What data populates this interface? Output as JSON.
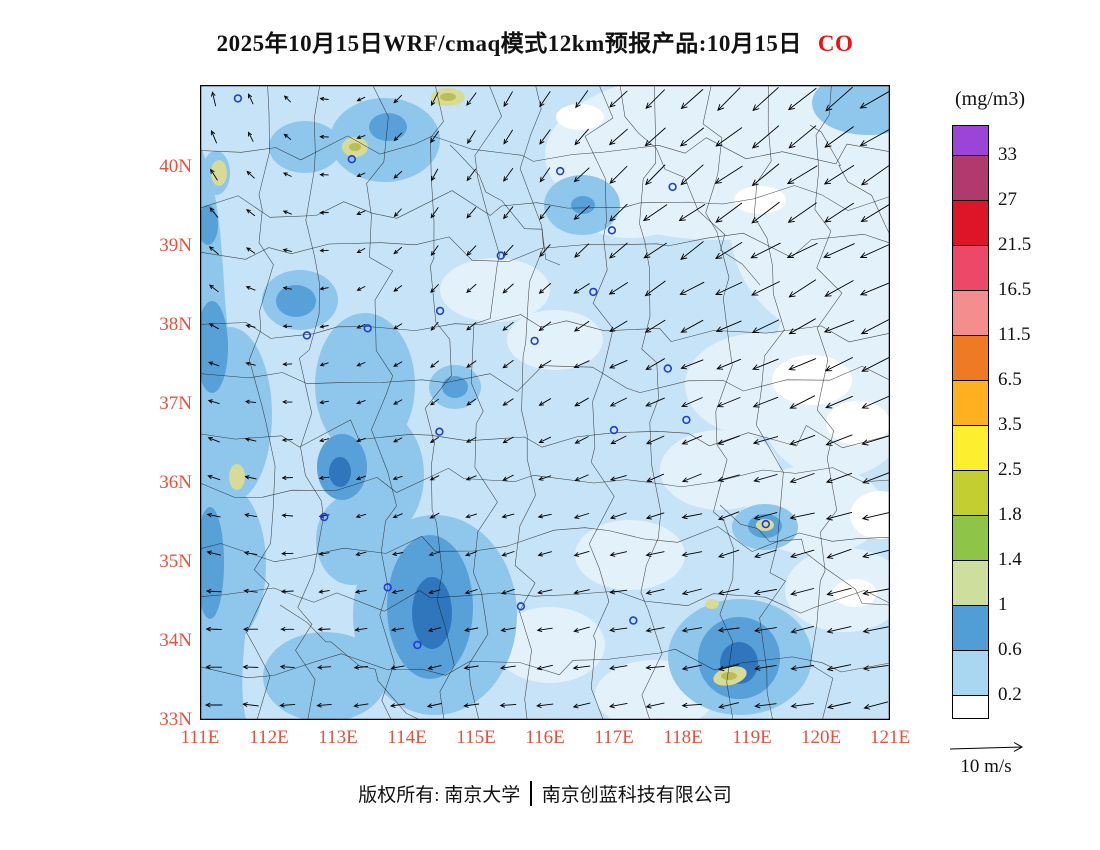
{
  "title": {
    "main": "2025年10月15日WRF/cmaq模式12km预报产品:10月15日",
    "pollutant": "CO"
  },
  "colors": {
    "pollutant_red": "#ee1111",
    "axis_label_red": "#e8503c",
    "map_base_blue": "#c6e3f7",
    "station_marker_blue": "#1d3ed8"
  },
  "legend": {
    "unit": "(mg/m3)",
    "wind_ref_label": "10 m/s",
    "segments": [
      {
        "color": "#9a45d8",
        "label": "33"
      },
      {
        "color": "#b03a6e",
        "label": "27"
      },
      {
        "color": "#de1428",
        "label": "21.5"
      },
      {
        "color": "#ee4868",
        "label": "16.5"
      },
      {
        "color": "#f48d8d",
        "label": "11.5"
      },
      {
        "color": "#ef7a24",
        "label": "6.5"
      },
      {
        "color": "#ffb020",
        "label": "3.5"
      },
      {
        "color": "#fdee30",
        "label": "2.5"
      },
      {
        "color": "#c3cf30",
        "label": "1.8"
      },
      {
        "color": "#8ec447",
        "label": "1.4"
      },
      {
        "color": "#cede9c",
        "label": "1"
      },
      {
        "color": "#519dd6",
        "label": "0.6"
      },
      {
        "color": "#a9d7f2",
        "label": "0.2"
      },
      {
        "color": "#ffffff",
        "label": ""
      }
    ]
  },
  "axes": {
    "lat": [
      {
        "label": "40N",
        "value": 40
      },
      {
        "label": "39N",
        "value": 39
      },
      {
        "label": "38N",
        "value": 38
      },
      {
        "label": "37N",
        "value": 37
      },
      {
        "label": "36N",
        "value": 36
      },
      {
        "label": "35N",
        "value": 35
      },
      {
        "label": "34N",
        "value": 34
      },
      {
        "label": "33N",
        "value": 33
      }
    ],
    "lon": [
      {
        "label": "111E",
        "value": 111
      },
      {
        "label": "112E",
        "value": 112
      },
      {
        "label": "113E",
        "value": 113
      },
      {
        "label": "114E",
        "value": 114
      },
      {
        "label": "115E",
        "value": 115
      },
      {
        "label": "116E",
        "value": 116
      },
      {
        "label": "117E",
        "value": 117
      },
      {
        "label": "118E",
        "value": 118
      },
      {
        "label": "119E",
        "value": 119
      },
      {
        "label": "120E",
        "value": 120
      },
      {
        "label": "121E",
        "value": 121
      }
    ]
  },
  "map": {
    "extent": {
      "lon_min": 111,
      "lon_max": 121,
      "lat_min": 33,
      "lat_max": 41.04
    },
    "stations": [
      [
        111.55,
        40.87
      ],
      [
        113.2,
        40.1
      ],
      [
        116.22,
        39.95
      ],
      [
        117.85,
        39.75
      ],
      [
        116.97,
        39.2
      ],
      [
        115.36,
        38.88
      ],
      [
        116.7,
        38.42
      ],
      [
        114.48,
        38.18
      ],
      [
        113.43,
        37.96
      ],
      [
        112.55,
        37.87
      ],
      [
        115.85,
        37.8
      ],
      [
        117.78,
        37.45
      ],
      [
        114.47,
        36.65
      ],
      [
        117.0,
        36.67
      ],
      [
        118.05,
        36.8
      ],
      [
        112.8,
        35.57
      ],
      [
        119.2,
        35.48
      ],
      [
        113.72,
        34.68
      ],
      [
        115.65,
        34.44
      ],
      [
        117.28,
        34.26
      ],
      [
        114.15,
        33.95
      ]
    ],
    "wind_grid": {
      "cols": 7,
      "rows": 6,
      "cells": [
        [
          [
            100,
            14
          ],
          [
            170,
            8
          ],
          [
            240,
            14
          ],
          [
            235,
            18
          ],
          [
            225,
            26
          ],
          [
            220,
            34
          ],
          [
            215,
            36
          ]
        ],
        [
          [
            130,
            12
          ],
          [
            185,
            8
          ],
          [
            235,
            12
          ],
          [
            228,
            16
          ],
          [
            218,
            28
          ],
          [
            212,
            34
          ],
          [
            210,
            34
          ]
        ],
        [
          [
            155,
            10
          ],
          [
            195,
            8
          ],
          [
            225,
            10
          ],
          [
            212,
            14
          ],
          [
            208,
            22
          ],
          [
            205,
            28
          ],
          [
            205,
            32
          ]
        ],
        [
          [
            165,
            12
          ],
          [
            190,
            9
          ],
          [
            210,
            9
          ],
          [
            200,
            12
          ],
          [
            200,
            18
          ],
          [
            198,
            24
          ],
          [
            200,
            28
          ]
        ],
        [
          [
            172,
            14
          ],
          [
            186,
            10
          ],
          [
            198,
            11
          ],
          [
            194,
            14
          ],
          [
            192,
            18
          ],
          [
            192,
            22
          ],
          [
            195,
            26
          ]
        ],
        [
          [
            176,
            16
          ],
          [
            183,
            14
          ],
          [
            190,
            14
          ],
          [
            188,
            16
          ],
          [
            188,
            18
          ],
          [
            190,
            21
          ],
          [
            192,
            24
          ]
        ]
      ]
    }
  },
  "footer": {
    "left": "版权所有: 南京大学",
    "right": "南京创蓝科技有限公司"
  }
}
